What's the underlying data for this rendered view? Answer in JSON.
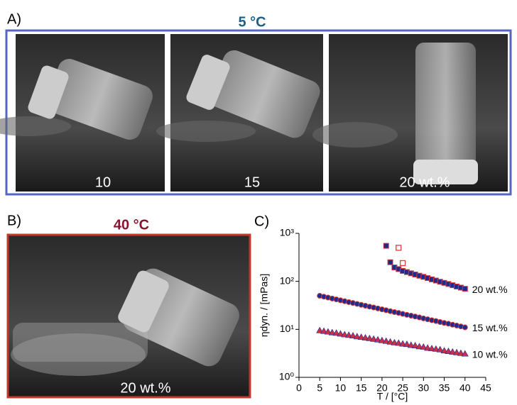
{
  "panel_a": {
    "label": "A)",
    "title": "5 °C",
    "captions": [
      "10",
      "15",
      "20 wt.%"
    ]
  },
  "panel_b": {
    "label": "B)",
    "title": "40 °C",
    "caption": "20 wt.%"
  },
  "panel_c": {
    "label": "C)"
  },
  "chart_data": {
    "type": "scatter",
    "xlabel": "T / [°C]",
    "ylabel": "ηdyn. / [mPas]",
    "xlim": [
      0,
      45
    ],
    "xticks": [
      0,
      5,
      10,
      15,
      20,
      25,
      30,
      35,
      40,
      45
    ],
    "ylim": [
      1,
      1000
    ],
    "log_y": true,
    "yticks": [
      {
        "value": 1,
        "label": "10⁰"
      },
      {
        "value": 10,
        "label": "10¹"
      },
      {
        "value": 100,
        "label": "10²"
      },
      {
        "value": 1000,
        "label": "10³"
      }
    ],
    "series": [
      {
        "name": "20 wt.%",
        "marker": "square",
        "color": "#1f2a8c",
        "edge_color": "#d63a3a",
        "x": [
          21,
          22,
          23,
          24,
          25,
          26,
          27,
          28,
          29,
          30,
          31,
          32,
          33,
          34,
          35,
          36,
          37,
          38,
          39,
          40
        ],
        "values": [
          550,
          250,
          195,
          180,
          165,
          156,
          147,
          139,
          131,
          124,
          117,
          110,
          104,
          98,
          93,
          88,
          83,
          78,
          74,
          70
        ]
      },
      {
        "marker": "open-square",
        "color": "#e03a3a",
        "x": [
          24,
          25
        ],
        "values": [
          500,
          240
        ]
      },
      {
        "name": "15 wt.%",
        "marker": "circle",
        "color": "#1f2a8c",
        "edge_color": "#d63a3a",
        "x": [
          5,
          6,
          7,
          8,
          9,
          10,
          11,
          12,
          13,
          14,
          15,
          16,
          17,
          18,
          19,
          20,
          21,
          22,
          23,
          24,
          25,
          26,
          27,
          28,
          29,
          30,
          31,
          32,
          33,
          34,
          35,
          36,
          37,
          38,
          39,
          40
        ],
        "values": [
          50,
          47.9,
          45.9,
          43.9,
          42.1,
          40.3,
          38.6,
          36.9,
          35.4,
          33.9,
          32.4,
          31.1,
          29.7,
          28.5,
          27.3,
          26.1,
          25.0,
          23.9,
          22.9,
          22.0,
          21.0,
          20.1,
          19.3,
          18.5,
          17.7,
          16.9,
          16.2,
          15.5,
          14.9,
          14.2,
          13.6,
          13.1,
          12.5,
          12.0,
          11.5,
          11.0
        ]
      },
      {
        "name": "10 wt.%",
        "marker": "triangle",
        "color": "#c8304a",
        "edge_color": "#1f2a8c",
        "x": [
          5,
          6,
          7,
          8,
          9,
          10,
          11,
          12,
          13,
          14,
          15,
          16,
          17,
          18,
          19,
          20,
          21,
          22,
          23,
          24,
          25,
          26,
          27,
          28,
          29,
          30,
          31,
          32,
          33,
          34,
          35,
          36,
          37,
          38,
          39,
          40
        ],
        "values": [
          9.5,
          9.2,
          8.9,
          8.6,
          8.4,
          8.1,
          7.8,
          7.6,
          7.4,
          7.1,
          6.9,
          6.7,
          6.5,
          6.3,
          6.1,
          5.9,
          5.7,
          5.5,
          5.3,
          5.2,
          5.0,
          4.9,
          4.7,
          4.6,
          4.4,
          4.3,
          4.1,
          4.0,
          3.9,
          3.8,
          3.6,
          3.5,
          3.4,
          3.3,
          3.2,
          3.1
        ]
      }
    ]
  }
}
